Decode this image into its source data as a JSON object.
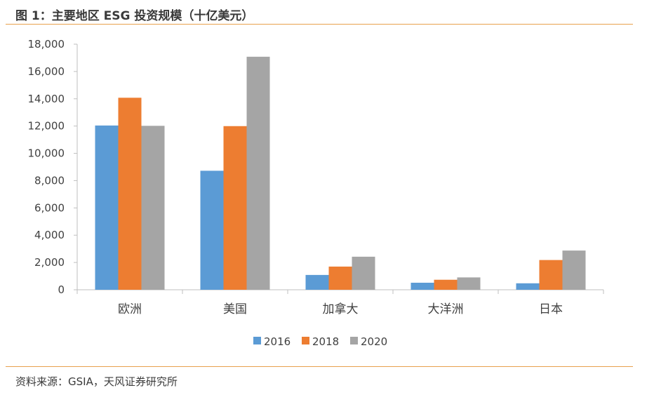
{
  "title": "图 1：主要地区 ESG 投资规模（十亿美元）",
  "source": "资料来源：GSIA，天风证券研究所",
  "chart_data": {
    "type": "bar",
    "categories": [
      "欧洲",
      "美国",
      "加拿大",
      "大洋洲",
      "日本"
    ],
    "series": [
      {
        "name": "2016",
        "color": "#5b9bd5",
        "values": [
          12040,
          8723,
          1086,
          516,
          474
        ]
      },
      {
        "name": "2018",
        "color": "#ed7d31",
        "values": [
          14075,
          11995,
          1699,
          734,
          2180
        ]
      },
      {
        "name": "2020",
        "color": "#a5a5a5",
        "values": [
          12017,
          17081,
          2423,
          906,
          2874
        ]
      }
    ],
    "yticks": [
      "0",
      "2,000",
      "4,000",
      "6,000",
      "8,000",
      "10,000",
      "12,000",
      "14,000",
      "16,000",
      "18,000"
    ],
    "ylim": [
      0,
      18000
    ],
    "grid": false,
    "legend": "bottom"
  }
}
